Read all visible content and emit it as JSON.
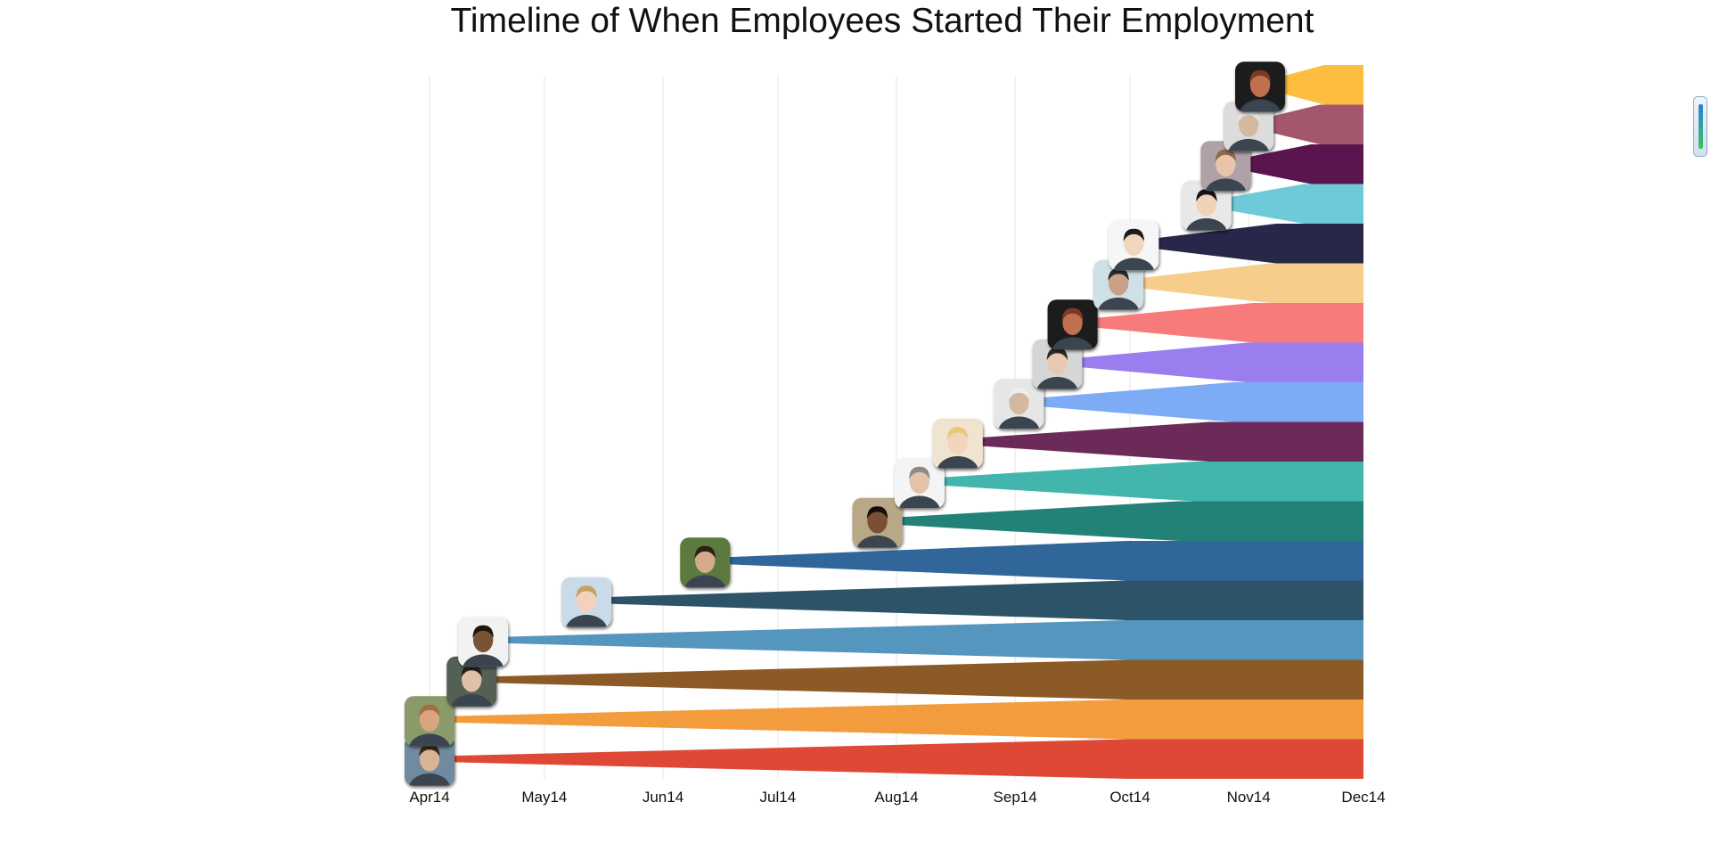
{
  "chart_data": {
    "type": "area",
    "title": "Timeline of When Employees Started Their Employment",
    "xlabel": "",
    "ylabel": "",
    "x_ticks": [
      "Apr14",
      "May14",
      "Jun14",
      "Jul14",
      "Aug14",
      "Sep14",
      "Oct14",
      "Nov14",
      "Dec14"
    ],
    "x_range": [
      "2014-04-01",
      "2014-12-01"
    ],
    "grid": true,
    "legend": "none",
    "series": [
      {
        "start": "2014-04-01",
        "color": "#e04836",
        "avatar_icon": "person-avatar-icon",
        "avatar_bg": "#6f8aa0",
        "skin": "#d8b496",
        "hair": "#3a2a1e"
      },
      {
        "start": "2014-04-01",
        "color": "#f29c3e",
        "avatar_icon": "person-avatar-icon",
        "avatar_bg": "#8a9a6a",
        "skin": "#d9a47e",
        "hair": "#a07040"
      },
      {
        "start": "2014-04-12",
        "color": "#8c5a26",
        "avatar_icon": "person-avatar-icon",
        "avatar_bg": "#556055",
        "skin": "#e0c0a6",
        "hair": "#2a2420"
      },
      {
        "start": "2014-04-15",
        "color": "#5596be",
        "avatar_icon": "person-avatar-icon",
        "avatar_bg": "#f2f2f2",
        "skin": "#7a5236",
        "hair": "#1a1410"
      },
      {
        "start": "2014-05-12",
        "color": "#2d5369",
        "avatar_icon": "person-avatar-icon",
        "avatar_bg": "#c9dbe8",
        "skin": "#f2d2bc",
        "hair": "#c8a066"
      },
      {
        "start": "2014-06-12",
        "color": "#31669b",
        "avatar_icon": "person-avatar-icon",
        "avatar_bg": "#5c7a3c",
        "skin": "#d4ab8a",
        "hair": "#2a2018"
      },
      {
        "start": "2014-07-27",
        "color": "#238277",
        "avatar_icon": "person-avatar-icon",
        "avatar_bg": "#b8a888",
        "skin": "#7a5034",
        "hair": "#120e0a"
      },
      {
        "start": "2014-08-07",
        "color": "#42b6ad",
        "avatar_icon": "person-avatar-icon",
        "avatar_bg": "#f4f4f4",
        "skin": "#e4c2a8",
        "hair": "#8a8a8a"
      },
      {
        "start": "2014-08-17",
        "color": "#6b2a58",
        "avatar_icon": "person-avatar-icon",
        "avatar_bg": "#f0e4d0",
        "skin": "#f2d4bc",
        "hair": "#e8c87a"
      },
      {
        "start": "2014-09-02",
        "color": "#7eabf6",
        "avatar_icon": "person-avatar-icon",
        "avatar_bg": "#e6e6e6",
        "skin": "#d4b8a0",
        "hair": "#eeeeee"
      },
      {
        "start": "2014-09-12",
        "color": "#9a7ef0",
        "avatar_icon": "person-avatar-icon",
        "avatar_bg": "#d6d6d6",
        "skin": "#e8c8b0",
        "hair": "#2a2a2a"
      },
      {
        "start": "2014-09-16",
        "color": "#f77b7b",
        "avatar_icon": "person-avatar-icon",
        "avatar_bg": "#1e1e1e",
        "skin": "#c07050",
        "hair": "#7a3a20"
      },
      {
        "start": "2014-09-28",
        "color": "#f6cd8a",
        "avatar_icon": "person-avatar-icon",
        "avatar_bg": "#cfe0e6",
        "skin": "#c9a088",
        "hair": "#2a2a2a"
      },
      {
        "start": "2014-10-02",
        "color": "#27274a",
        "avatar_icon": "person-avatar-icon",
        "avatar_bg": "#f6f6f6",
        "skin": "#f0d6bc",
        "hair": "#1a1a1a"
      },
      {
        "start": "2014-10-21",
        "color": "#6ecad8",
        "avatar_icon": "person-avatar-icon",
        "avatar_bg": "#e8e8e8",
        "skin": "#f0d2b8",
        "hair": "#141414"
      },
      {
        "start": "2014-10-26",
        "color": "#5b154e",
        "avatar_icon": "person-avatar-icon",
        "avatar_bg": "#b0a0a8",
        "skin": "#e8c4ac",
        "hair": "#8a6a4a"
      },
      {
        "start": "2014-11-01",
        "color": "#a4576c",
        "avatar_icon": "person-avatar-icon",
        "avatar_bg": "#dcdcdc",
        "skin": "#d4b8a0",
        "hair": "#e6e6e6"
      },
      {
        "start": "2014-11-04",
        "color": "#fdbe3f",
        "avatar_icon": "person-avatar-icon",
        "avatar_bg": "#1e1e1e",
        "skin": "#c07050",
        "hair": "#7a3a20"
      }
    ]
  },
  "widgets": {
    "scroll_indicator_icon": "scroll-indicator-icon"
  }
}
